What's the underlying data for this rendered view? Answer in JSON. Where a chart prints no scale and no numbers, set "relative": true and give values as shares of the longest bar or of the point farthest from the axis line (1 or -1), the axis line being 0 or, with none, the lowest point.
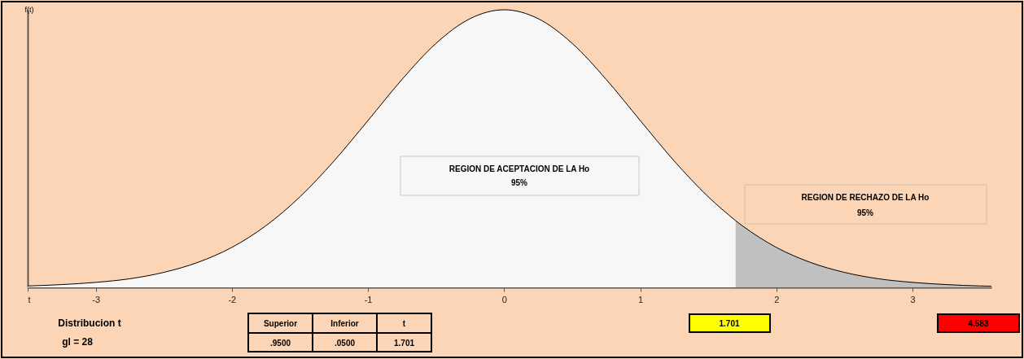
{
  "chart_data": {
    "type": "area",
    "relative": true,
    "ylabel": "f(t)",
    "xlim": [
      -3.5,
      3.58
    ],
    "xticks": [
      {
        "value": -3.5,
        "label": "t"
      },
      -3,
      -2,
      -1,
      0,
      1,
      2,
      3
    ],
    "series": [
      {
        "color": "#f7f7f7",
        "x": [
          -3.5,
          -3.25,
          -3,
          -2.75,
          -2.5,
          -2.25,
          -2,
          -1.75,
          -1.5,
          -1.25,
          -1,
          -0.75,
          -0.5,
          -0.25,
          0,
          0.25,
          0.5,
          0.75,
          1,
          1.25,
          1.5,
          1.701
        ],
        "values": [
          0.005,
          0.01,
          0.018,
          0.031,
          0.054,
          0.09,
          0.144,
          0.222,
          0.326,
          0.455,
          0.601,
          0.749,
          0.879,
          0.968,
          1,
          0.968,
          0.879,
          0.749,
          0.601,
          0.455,
          0.326,
          0.24
        ]
      },
      {
        "color": "#c0c0c0",
        "x": [
          1.701,
          1.75,
          2,
          2.25,
          2.5,
          2.75,
          3,
          3.25,
          3.5,
          3.58
        ],
        "values": [
          0.24,
          0.222,
          0.144,
          0.09,
          0.054,
          0.031,
          0.018,
          0.01,
          0.005,
          0.004
        ]
      }
    ],
    "annotations": [
      "REGION DE ACEPTACION DE LA Ho\n95%",
      "REGION DE RECHAZO DE LA Ho\n95%",
      "Distribucion t",
      "gl =  28",
      "Superior",
      "Inferior",
      "t",
      ".9500",
      ".0500",
      "1.701",
      "1.701",
      "4.583"
    ],
    "grid": false
  }
}
